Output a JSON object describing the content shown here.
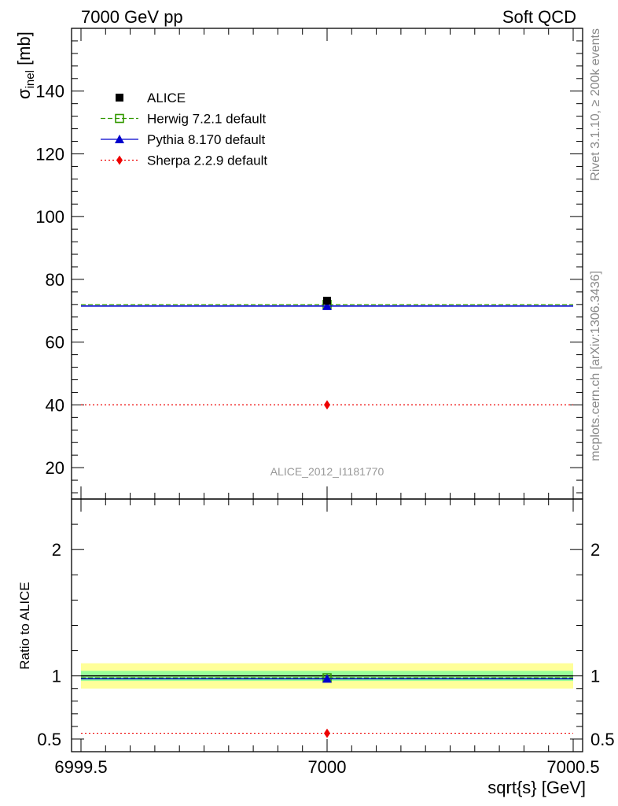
{
  "header": {
    "left_label": "7000 GeV pp",
    "right_label": "Soft QCD"
  },
  "side_labels": {
    "top": "Rivet 3.1.10, ≥ 200k events",
    "bottom": "mcplots.cern.ch [arXiv:1306.3436]"
  },
  "reference_label": "ALICE_2012_I1181770",
  "colors": {
    "data": "#000000",
    "herwig": "#339900",
    "pythia": "#0000cc",
    "sherpa": "#ee0000",
    "band_inner": "#99ff99",
    "band_outer": "#ffff99"
  },
  "chart_data": [
    {
      "type": "scatter",
      "panel": "main",
      "ylabel": "σ",
      "ylabel_sub": "inel",
      "ylabel_unit": " [mb]",
      "xlim": [
        6999.5,
        7000.5
      ],
      "ylim": [
        10,
        160
      ],
      "yticks": [
        20,
        40,
        60,
        80,
        100,
        120,
        140
      ],
      "ytick_labels": [
        "20",
        "40",
        "60",
        "80",
        "100",
        "120",
        "140"
      ],
      "series": [
        {
          "name": "ALICE",
          "x": [
            7000
          ],
          "y": [
            73.2
          ],
          "style": "data"
        },
        {
          "name": "Herwig 7.2.1 default",
          "x": [
            7000
          ],
          "y": [
            72.0
          ],
          "style": "herwig"
        },
        {
          "name": "Pythia 8.170 default",
          "x": [
            7000
          ],
          "y": [
            71.5
          ],
          "style": "pythia"
        },
        {
          "name": "Sherpa 2.2.9 default",
          "x": [
            7000
          ],
          "y": [
            40.0
          ],
          "style": "sherpa"
        }
      ]
    },
    {
      "type": "scatter",
      "panel": "ratio",
      "ylabel": "Ratio to ALICE",
      "xlabel": "sqrt{s} [GeV]",
      "xlim": [
        6999.5,
        7000.5
      ],
      "xticks": [
        6999.5,
        7000,
        7000.5
      ],
      "xtick_labels": [
        "6999.5",
        "7000",
        "7000.5"
      ],
      "ylim": [
        0.4,
        2.4
      ],
      "yticks": [
        0.5,
        1,
        2
      ],
      "ytick_labels": [
        "0.5",
        "1",
        "2"
      ],
      "band_outer": [
        0.9,
        1.1
      ],
      "band_inner": [
        0.96,
        1.04
      ],
      "series": [
        {
          "name": "Herwig 7.2.1 default",
          "x": [
            7000
          ],
          "y": [
            0.985
          ],
          "style": "herwig"
        },
        {
          "name": "Pythia 8.170 default",
          "x": [
            7000
          ],
          "y": [
            0.977
          ],
          "style": "pythia"
        },
        {
          "name": "Sherpa 2.2.9 default",
          "x": [
            7000
          ],
          "y": [
            0.546
          ],
          "style": "sherpa"
        }
      ]
    }
  ]
}
